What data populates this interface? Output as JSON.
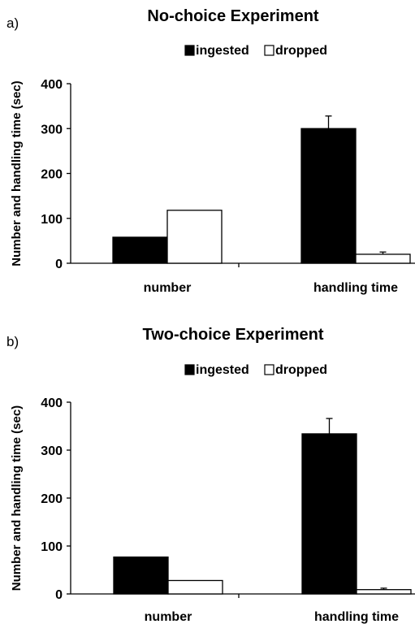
{
  "chart_data": [
    {
      "type": "bar",
      "panel_label": "a)",
      "title": "No-choice Experiment",
      "ylabel": "Number and handling time (sec)",
      "xlabel": "",
      "categories": [
        "number",
        "handling time"
      ],
      "ylim": [
        0,
        400
      ],
      "yticks": [
        0,
        100,
        200,
        300,
        400
      ],
      "legend_position": "top-right",
      "series": [
        {
          "name": "ingested",
          "color": "#000000",
          "values": [
            58,
            300
          ],
          "errors": [
            null,
            28
          ]
        },
        {
          "name": "dropped",
          "color": "#ffffff",
          "values": [
            118,
            20
          ],
          "errors": [
            null,
            5
          ]
        }
      ]
    },
    {
      "type": "bar",
      "panel_label": "b)",
      "title": "Two-choice Experiment",
      "ylabel": "Number and handling time (sec)",
      "xlabel": "",
      "categories": [
        "number",
        "handling time"
      ],
      "ylim": [
        0,
        400
      ],
      "yticks": [
        0,
        100,
        200,
        300,
        400
      ],
      "legend_position": "top-right",
      "series": [
        {
          "name": "ingested",
          "color": "#000000",
          "values": [
            77,
            334
          ],
          "errors": [
            null,
            32
          ]
        },
        {
          "name": "dropped",
          "color": "#ffffff",
          "values": [
            28,
            9
          ],
          "errors": [
            null,
            3
          ]
        }
      ]
    }
  ]
}
